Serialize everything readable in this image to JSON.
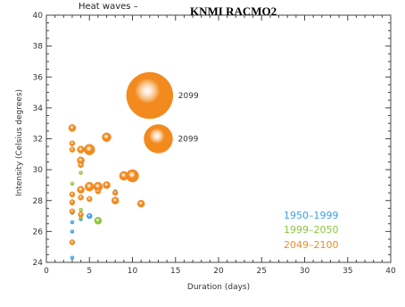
{
  "chart_data": {
    "type": "scatter",
    "title_left": "Heat waves –",
    "title_right": "KNMI RACMO2",
    "xlabel": "Duration (days)",
    "ylabel": "Intensity (Celsius degrees)",
    "xlim": [
      0,
      40
    ],
    "ylim": [
      24,
      40
    ],
    "xticks": [
      0,
      5,
      10,
      15,
      20,
      25,
      30,
      35,
      40
    ],
    "yticks": [
      24,
      26,
      28,
      30,
      32,
      34,
      36,
      38,
      40
    ],
    "legend_position": "bottom-right",
    "series": [
      {
        "name": "1950–1999",
        "color": "#3aa0e6",
        "points": [
          {
            "x": 3,
            "y": 24.3,
            "size": 2
          },
          {
            "x": 3,
            "y": 26.0,
            "size": 2
          },
          {
            "x": 3,
            "y": 26.6,
            "size": 2
          },
          {
            "x": 3,
            "y": 27.2,
            "size": 2
          },
          {
            "x": 4,
            "y": 26.8,
            "size": 2
          },
          {
            "x": 5,
            "y": 27.0,
            "size": 3
          },
          {
            "x": 8,
            "y": 28.6,
            "size": 2
          }
        ]
      },
      {
        "name": "1999–2050",
        "color": "#8cc63f",
        "points": [
          {
            "x": 3,
            "y": 29.1,
            "size": 2
          },
          {
            "x": 3,
            "y": 27.8,
            "size": 2
          },
          {
            "x": 4,
            "y": 29.8,
            "size": 2
          },
          {
            "x": 4,
            "y": 27.4,
            "size": 2
          },
          {
            "x": 6,
            "y": 26.7,
            "size": 4
          },
          {
            "x": 4,
            "y": 26.9,
            "size": 2
          }
        ]
      },
      {
        "name": "2049–2100",
        "color": "#f28a1e",
        "points": [
          {
            "x": 3,
            "y": 32.7,
            "size": 4
          },
          {
            "x": 3,
            "y": 31.7,
            "size": 3
          },
          {
            "x": 3,
            "y": 31.3,
            "size": 3
          },
          {
            "x": 3,
            "y": 28.4,
            "size": 3
          },
          {
            "x": 3,
            "y": 27.9,
            "size": 3
          },
          {
            "x": 3,
            "y": 27.3,
            "size": 3
          },
          {
            "x": 3,
            "y": 25.3,
            "size": 3
          },
          {
            "x": 4,
            "y": 31.3,
            "size": 4
          },
          {
            "x": 4,
            "y": 30.6,
            "size": 4
          },
          {
            "x": 4,
            "y": 30.3,
            "size": 3
          },
          {
            "x": 4,
            "y": 28.7,
            "size": 4
          },
          {
            "x": 4,
            "y": 28.2,
            "size": 3
          },
          {
            "x": 4,
            "y": 27.1,
            "size": 3
          },
          {
            "x": 5,
            "y": 31.3,
            "size": 6
          },
          {
            "x": 5,
            "y": 28.9,
            "size": 5
          },
          {
            "x": 5,
            "y": 28.1,
            "size": 3
          },
          {
            "x": 6,
            "y": 28.9,
            "size": 5
          },
          {
            "x": 6,
            "y": 28.6,
            "size": 3
          },
          {
            "x": 7,
            "y": 32.1,
            "size": 5
          },
          {
            "x": 7,
            "y": 29.0,
            "size": 4
          },
          {
            "x": 8,
            "y": 28.5,
            "size": 3
          },
          {
            "x": 8,
            "y": 28.0,
            "size": 4
          },
          {
            "x": 9,
            "y": 29.6,
            "size": 5
          },
          {
            "x": 10,
            "y": 29.6,
            "size": 7
          },
          {
            "x": 11,
            "y": 27.8,
            "size": 4
          },
          {
            "x": 12,
            "y": 34.8,
            "size": 26,
            "label": "2099"
          },
          {
            "x": 13,
            "y": 32.0,
            "size": 16,
            "label": "2099"
          }
        ]
      }
    ]
  }
}
